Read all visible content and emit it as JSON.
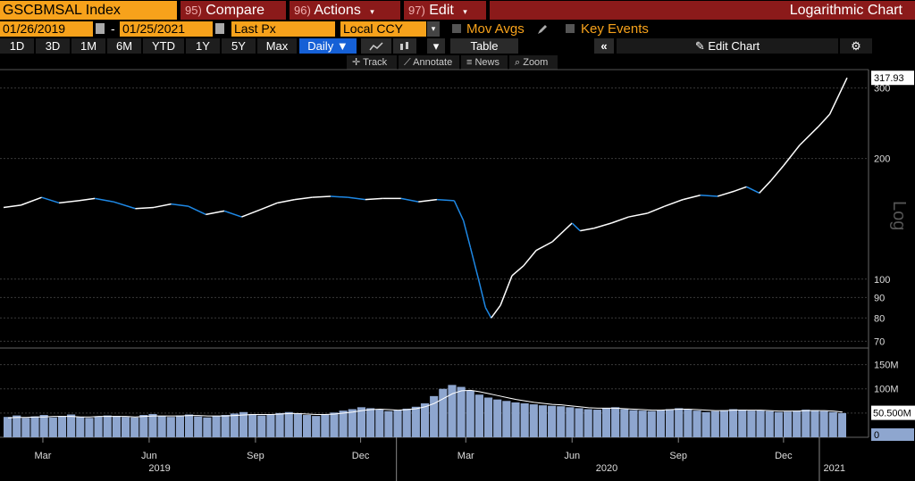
{
  "header": {
    "ticker": "GSCBMSAL Index",
    "compare_num": "95)",
    "compare_label": "Compare",
    "actions_num": "96)",
    "actions_label": "Actions",
    "edit_num": "97)",
    "edit_label": "Edit",
    "chart_title": "Logarithmic Chart",
    "dropdown_glyph": "▾"
  },
  "controls": {
    "start_date": "01/26/2019",
    "end_date": "01/25/2021",
    "date_sep": "-",
    "price_field": "Last Px",
    "currency": "Local CCY",
    "mov_avgs": "Mov Avgs",
    "key_events": "Key Events"
  },
  "periods": [
    "1D",
    "3D",
    "1M",
    "6M",
    "YTD",
    "1Y",
    "5Y",
    "Max"
  ],
  "frequency": "Daily",
  "toolbar": {
    "table": "Table",
    "collapse": "«",
    "edit_chart": "Edit Chart",
    "track": "Track",
    "annotate": "Annotate",
    "news": "News",
    "zoom": "Zoom"
  },
  "colors": {
    "accent_orange": "#f7a21b",
    "header_red": "#8b1a1a",
    "price_up": "#ffffff",
    "price_down": "#1e88e5",
    "volume_bar": "#8ea6cf",
    "grid": "#3a3a3a"
  },
  "chart_data": {
    "type": "line",
    "scale": "log",
    "scale_label": "Log",
    "price_axis_ticks": [
      70,
      80,
      90,
      100,
      200,
      300
    ],
    "last_price_label": "317.93",
    "series": [
      {
        "dates": [
          "2019-01-26",
          "2019-02-10",
          "2019-02-28",
          "2019-03-15",
          "2019-04-01",
          "2019-04-15",
          "2019-05-01",
          "2019-05-20",
          "2019-06-05",
          "2019-06-20",
          "2019-07-05",
          "2019-07-20",
          "2019-08-05",
          "2019-08-20",
          "2019-09-05",
          "2019-09-20",
          "2019-10-05",
          "2019-10-20",
          "2019-11-05",
          "2019-11-20",
          "2019-12-05",
          "2019-12-20",
          "2020-01-05",
          "2020-01-20",
          "2020-02-05",
          "2020-02-20",
          "2020-02-28",
          "2020-03-05",
          "2020-03-12",
          "2020-03-18",
          "2020-03-23",
          "2020-03-31",
          "2020-04-10",
          "2020-04-20",
          "2020-05-01",
          "2020-05-15",
          "2020-06-01",
          "2020-06-08",
          "2020-06-20",
          "2020-07-05",
          "2020-07-20",
          "2020-08-05",
          "2020-08-20",
          "2020-09-05",
          "2020-09-20",
          "2020-10-05",
          "2020-10-20",
          "2020-10-30",
          "2020-11-10",
          "2020-11-20",
          "2020-12-01",
          "2020-12-15",
          "2020-12-31",
          "2021-01-10",
          "2021-01-25"
        ],
        "values": [
          151,
          153,
          160,
          155,
          157,
          159,
          156,
          150,
          151,
          154,
          152,
          145,
          148,
          143,
          149,
          155,
          158,
          160,
          161,
          160,
          158,
          159,
          159,
          156,
          158,
          157,
          140,
          120,
          100,
          85,
          80,
          86,
          102,
          108,
          118,
          124,
          138,
          132,
          134,
          138,
          143,
          146,
          152,
          158,
          162,
          161,
          166,
          170,
          164,
          176,
          192,
          216,
          240,
          258,
          318
        ]
      }
    ],
    "volume": {
      "axis_ticks_label": [
        "50M",
        "100M",
        "150M"
      ],
      "axis_ticks": [
        50,
        100,
        150
      ],
      "zero_label": "0",
      "last_label": "50.500M",
      "values": [
        42,
        45,
        40,
        43,
        46,
        41,
        44,
        47,
        42,
        40,
        43,
        45,
        44,
        42,
        41,
        46,
        48,
        44,
        42,
        45,
        47,
        43,
        41,
        44,
        46,
        49,
        52,
        48,
        45,
        47,
        50,
        52,
        49,
        46,
        44,
        48,
        51,
        55,
        58,
        62,
        60,
        57,
        54,
        56,
        59,
        63,
        70,
        85,
        100,
        108,
        104,
        96,
        88,
        82,
        78,
        75,
        72,
        70,
        68,
        66,
        65,
        64,
        62,
        60,
        58,
        57,
        60,
        62,
        58,
        56,
        55,
        54,
        56,
        58,
        60,
        57,
        55,
        52,
        54,
        56,
        58,
        57,
        55,
        56,
        54,
        52,
        53,
        55,
        57,
        56,
        54,
        52,
        50
      ],
      "ma_values": [
        40,
        41,
        41,
        42,
        42,
        43,
        43,
        43,
        42,
        42,
        43,
        43,
        43,
        43,
        42,
        43,
        44,
        44,
        44,
        44,
        45,
        45,
        44,
        44,
        44,
        45,
        46,
        47,
        47,
        47,
        48,
        49,
        49,
        48,
        47,
        47,
        48,
        50,
        52,
        55,
        57,
        58,
        57,
        56,
        57,
        59,
        63,
        70,
        80,
        90,
        96,
        97,
        94,
        90,
        86,
        82,
        78,
        75,
        72,
        70,
        68,
        67,
        65,
        63,
        61,
        60,
        60,
        60,
        59,
        58,
        57,
        56,
        56,
        57,
        58,
        58,
        57,
        56,
        55,
        55,
        56,
        56,
        56,
        56,
        55,
        54,
        54,
        54,
        55,
        55,
        55,
        54,
        52
      ]
    },
    "x_ticks": [
      "Mar",
      "Jun",
      "Sep",
      "Dec",
      "Mar",
      "Jun",
      "Sep",
      "Dec"
    ],
    "year_labels": [
      "2019",
      "2020",
      "2021"
    ]
  }
}
